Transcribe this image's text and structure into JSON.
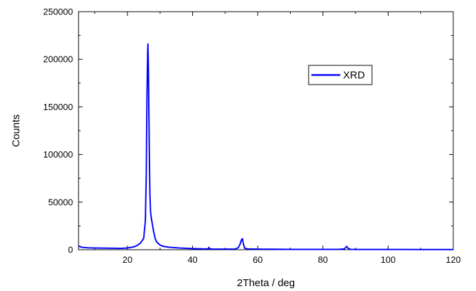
{
  "chart_data": {
    "type": "line",
    "xlabel": "2Theta  / deg",
    "ylabel": "Counts",
    "xlim": [
      5,
      120
    ],
    "ylim": [
      0,
      250000
    ],
    "x_ticks": [
      20,
      40,
      60,
      80,
      100,
      120
    ],
    "y_ticks": [
      0,
      50000,
      100000,
      150000,
      200000,
      250000
    ],
    "grid": false,
    "legend_position": "top-right",
    "series": [
      {
        "name": "XRD",
        "color": "#0000ff",
        "x": [
          5,
          6,
          8,
          10,
          12,
          14,
          16,
          18,
          20,
          22,
          23,
          24,
          25,
          25.5,
          25.8,
          26.0,
          26.2,
          26.3,
          26.45,
          26.6,
          26.75,
          26.9,
          27.1,
          27.3,
          27.6,
          28.0,
          28.5,
          29.0,
          30,
          31,
          33,
          36,
          40,
          44,
          44.8,
          45.0,
          45.2,
          46,
          50,
          53,
          54.0,
          54.6,
          55.0,
          55.3,
          55.6,
          56.0,
          57,
          60,
          65,
          70,
          75,
          80,
          85,
          86.6,
          87.0,
          87.3,
          87.7,
          88.5,
          90,
          95,
          100,
          105,
          110,
          115,
          120
        ],
        "y": [
          4000,
          2500,
          2000,
          1800,
          1700,
          1600,
          1500,
          1400,
          1800,
          3000,
          4500,
          7000,
          12000,
          30000,
          80000,
          160000,
          205000,
          216000,
          190000,
          140000,
          95000,
          60000,
          40000,
          34000,
          28000,
          20000,
          12000,
          8000,
          5000,
          3500,
          2500,
          1800,
          1200,
          800,
          1000,
          2500,
          900,
          700,
          600,
          700,
          2000,
          6000,
          10500,
          11500,
          6000,
          1500,
          800,
          600,
          500,
          400,
          400,
          400,
          400,
          900,
          2500,
          3500,
          1500,
          400,
          300,
          300,
          250,
          250,
          200,
          200,
          200
        ]
      }
    ]
  }
}
